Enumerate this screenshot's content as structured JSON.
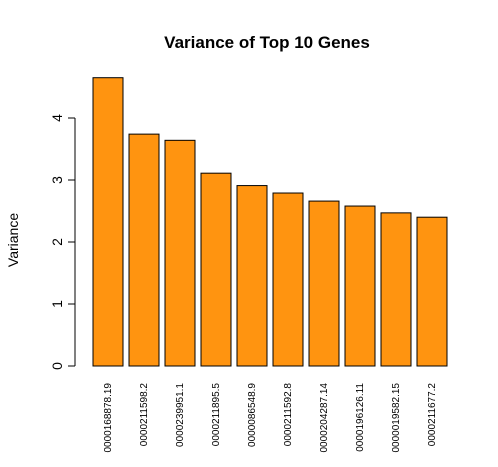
{
  "chart_data": {
    "type": "bar",
    "title": "Variance of Top 10 Genes",
    "xlabel": "",
    "ylabel": "Variance",
    "categories": [
      "0000168878.19",
      "0000211598.2",
      "0000239951.1",
      "0000211895.5",
      "0000086548.9",
      "0000211592.8",
      "0000204287.14",
      "0000196126.11",
      "0000019582.15",
      "0000211677.2"
    ],
    "values": [
      4.65,
      3.74,
      3.64,
      3.11,
      2.91,
      2.79,
      2.66,
      2.58,
      2.47,
      2.4
    ],
    "ylim": [
      0,
      4.65
    ],
    "yticks": [
      0,
      1,
      2,
      3,
      4
    ],
    "bar_color": "#FF9410",
    "grid": false,
    "legend": "none"
  }
}
